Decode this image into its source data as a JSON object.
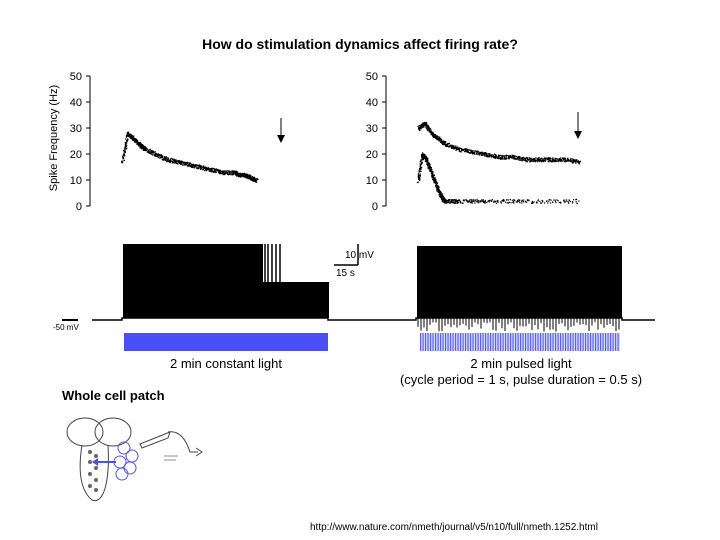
{
  "title": "How do stimulation dynamics affect firing rate?",
  "colors": {
    "light_bar": "#4a4ef5",
    "trace": "#000000"
  },
  "chart_data": [
    {
      "type": "scatter",
      "panel": "constant",
      "ylabel": "Spike Frequency (Hz)",
      "ylim": [
        0,
        50
      ],
      "yticks": [
        0,
        10,
        20,
        30,
        40,
        50
      ],
      "x_unit": "s",
      "xlim": [
        0,
        150
      ],
      "series": [
        {
          "x": [
            0,
            5,
            10,
            15,
            20,
            30,
            40,
            50,
            60,
            70,
            80,
            90,
            100,
            105,
            110,
            115,
            120
          ],
          "y": [
            17,
            28,
            26,
            24,
            22,
            20,
            18,
            17,
            16,
            15,
            14,
            13,
            13,
            12,
            12,
            11,
            10
          ]
        }
      ],
      "annotation": "arrow"
    },
    {
      "type": "scatter",
      "panel": "pulsed",
      "ylim": [
        0,
        50
      ],
      "yticks": [
        0,
        10,
        20,
        30,
        40,
        50
      ],
      "x_unit": "s",
      "xlim": [
        0,
        150
      ],
      "series": [
        {
          "x": [
            0,
            5,
            10,
            15,
            20,
            30,
            40,
            50,
            60,
            70,
            80,
            90,
            100,
            110,
            120
          ],
          "y": [
            30,
            32,
            28,
            26,
            24,
            22,
            21,
            20,
            19,
            19,
            18,
            18,
            18,
            18,
            17
          ]
        },
        {
          "x": [
            0,
            3,
            6,
            9,
            12,
            15,
            18,
            20,
            30,
            50,
            80,
            120
          ],
          "y": [
            10,
            20,
            18,
            14,
            10,
            6,
            3,
            2,
            2,
            2,
            2,
            2
          ]
        }
      ],
      "annotation": "arrow"
    }
  ],
  "traces": {
    "scale_mv": "10 mV",
    "scale_s": "15 s",
    "baseline_label": "-50 mV"
  },
  "captions": {
    "constant": "2 min constant light",
    "pulsed_line1": "2 min pulsed light",
    "pulsed_line2": "(cycle period = 1 s, pulse duration = 0.5 s)"
  },
  "section": {
    "label": "Whole cell patch"
  },
  "url": "http://www.nature.com/nmeth/journal/v5/n10/full/nmeth.1252.html"
}
